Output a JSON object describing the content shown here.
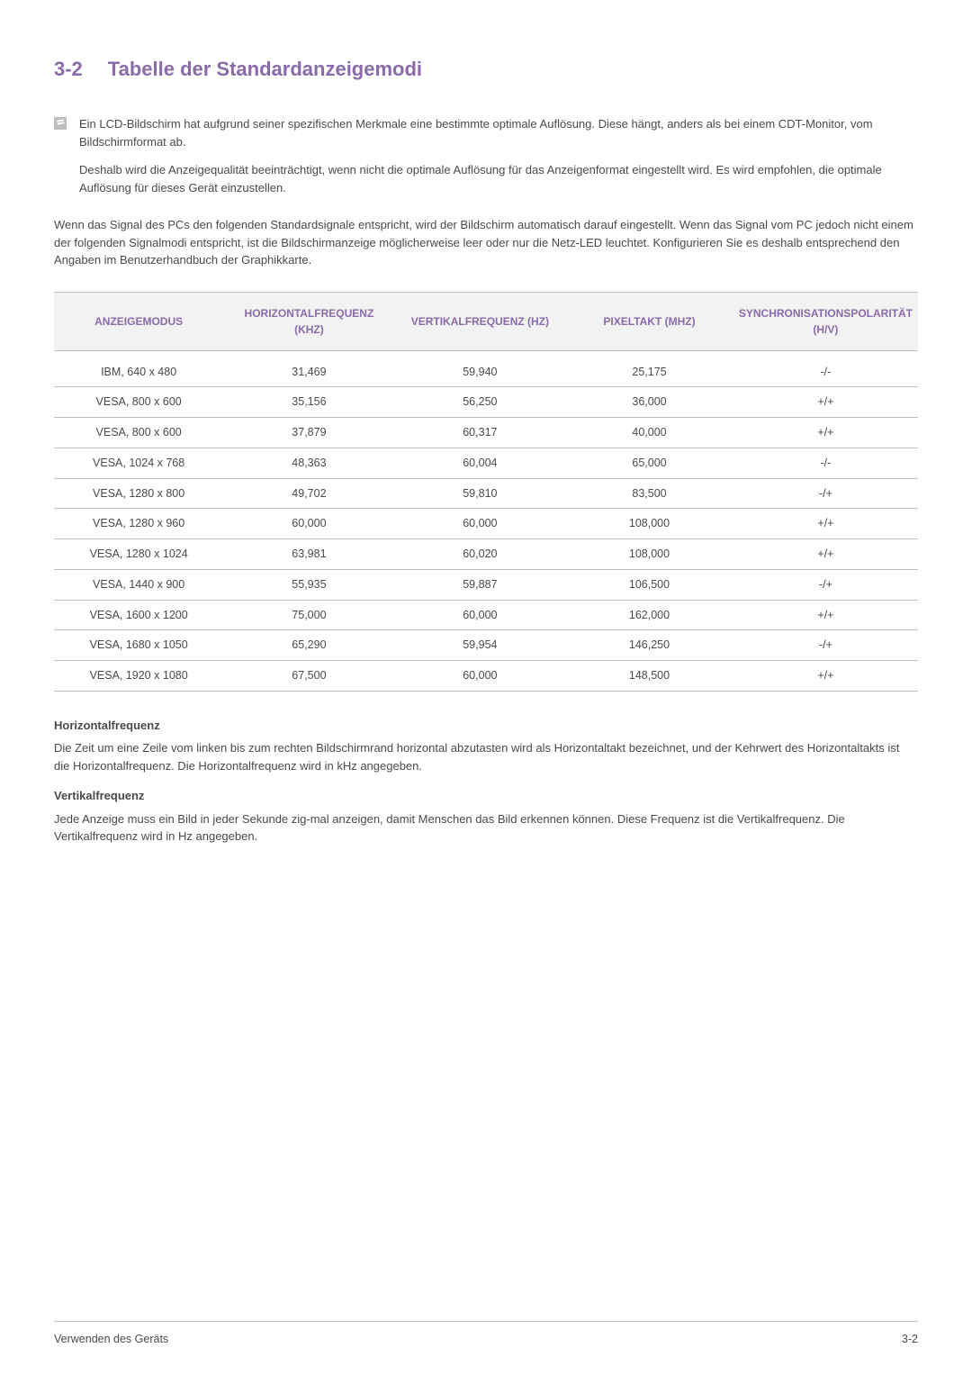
{
  "heading": {
    "number": "3-2",
    "title": "Tabelle der Standardanzeigemodi"
  },
  "info": {
    "p1": "Ein LCD-Bildschirm hat aufgrund seiner spezifischen Merkmale eine bestimmte optimale Auflösung. Diese hängt, anders als bei einem CDT-Monitor, vom Bildschirmformat ab.",
    "p2": "Deshalb wird die Anzeigequalität beeinträchtigt, wenn nicht die optimale Auflösung für das Anzeigenformat eingestellt wird. Es wird empfohlen, die optimale Auflösung für dieses Gerät einzustellen."
  },
  "para": "Wenn das Signal des PCs den folgenden Standardsignale entspricht, wird der Bildschirm automatisch darauf eingestellt. Wenn das Signal vom PC jedoch nicht einem der folgenden Signalmodi entspricht, ist die Bildschirmanzeige möglicherweise leer oder nur die Netz-LED leuchtet. Konfigurieren Sie es deshalb entsprechend den Angaben im Benutzerhandbuch der Graphikkarte.",
  "table": {
    "columns": [
      "ANZEIGEMODUS",
      "HORIZONTALFREQUENZ (KHZ)",
      "VERTIKALFREQUENZ (HZ)",
      "PIXELTAKT (MHZ)",
      "SYNCHRONISATIONSPOLARITÄT (H/V)"
    ],
    "rows": [
      [
        "IBM, 640 x 480",
        "31,469",
        "59,940",
        "25,175",
        "-/-"
      ],
      [
        "VESA, 800 x 600",
        "35,156",
        "56,250",
        "36,000",
        "+/+"
      ],
      [
        "VESA, 800 x 600",
        "37,879",
        "60,317",
        "40,000",
        "+/+"
      ],
      [
        "VESA, 1024 x 768",
        "48,363",
        "60,004",
        "65,000",
        "-/-"
      ],
      [
        "VESA, 1280 x 800",
        "49,702",
        "59,810",
        "83,500",
        "-/+"
      ],
      [
        "VESA, 1280 x 960",
        "60,000",
        "60,000",
        "108,000",
        "+/+"
      ],
      [
        "VESA, 1280 x 1024",
        "63,981",
        "60,020",
        "108,000",
        "+/+"
      ],
      [
        "VESA, 1440 x 900",
        "55,935",
        "59,887",
        "106,500",
        "-/+"
      ],
      [
        "VESA, 1600 x 1200",
        "75,000",
        "60,000",
        "162,000",
        "+/+"
      ],
      [
        "VESA, 1680 x 1050",
        "65,290",
        "59,954",
        "146,250",
        "-/+"
      ],
      [
        "VESA, 1920 x 1080",
        "67,500",
        "60,000",
        "148,500",
        "+/+"
      ]
    ]
  },
  "defs": {
    "h1": "Horizontalfrequenz",
    "d1": "Die Zeit um eine Zeile vom linken bis zum rechten Bildschirmrand horizontal abzutasten wird als Horizontaltakt bezeichnet, und der Kehrwert des Horizontaltakts ist die Horizontalfrequenz. Die Horizontalfrequenz wird in kHz angegeben.",
    "h2": "Vertikalfrequenz",
    "d2": "Jede Anzeige muss ein Bild in jeder Sekunde zig-mal anzeigen, damit Menschen das Bild erkennen können. Diese Frequenz ist die Vertikalfrequenz. Die Vertikalfrequenz wird in Hz angegeben."
  },
  "footer": {
    "left": "Verwenden des Geräts",
    "right": "3-2"
  }
}
